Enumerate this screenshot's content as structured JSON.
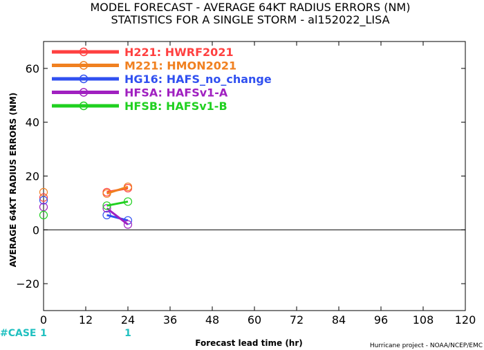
{
  "chart_data": {
    "type": "line",
    "title": "MODEL FORECAST - AVERAGE 64KT RADIUS ERRORS (NM)",
    "subtitle": "STATISTICS FOR A SINGLE STORM - al152022_LISA",
    "xlabel": "Forecast lead time (hr)",
    "ylabel": "AVERAGE 64KT RADIUS ERRORS (NM)",
    "xlim": [
      0,
      120
    ],
    "ylim": [
      -30,
      70
    ],
    "xticks": [
      0,
      12,
      24,
      36,
      48,
      60,
      72,
      84,
      96,
      108,
      120
    ],
    "yticks": [
      -20,
      0,
      20,
      40,
      60
    ],
    "grid": false,
    "legend_position": "top-left",
    "series": [
      {
        "name": "H221: HWRF2021",
        "color": "#ff4040",
        "points": [
          [
            0,
            12
          ],
          [
            18,
            14
          ],
          [
            24,
            15.5
          ]
        ]
      },
      {
        "name": "M221: HMON2021",
        "color": "#f08020",
        "points": [
          [
            0,
            14
          ],
          [
            18,
            13.5
          ],
          [
            24,
            16
          ]
        ]
      },
      {
        "name": "HG16: HAFS_no_change",
        "color": "#3050f0",
        "points": [
          [
            0,
            11
          ],
          [
            18,
            5.5
          ],
          [
            24,
            3.5
          ]
        ]
      },
      {
        "name": "HFSA: HAFSv1-A",
        "color": "#a020c0",
        "points": [
          [
            0,
            8.5
          ],
          [
            18,
            8
          ],
          [
            24,
            2
          ]
        ]
      },
      {
        "name": "HFSB: HAFSv1-B",
        "color": "#20d020",
        "points": [
          [
            0,
            5.5
          ],
          [
            18,
            9
          ],
          [
            24,
            10.5
          ]
        ]
      }
    ],
    "cases": {
      "label": "#CASE",
      "color": "#20c0c0",
      "items": [
        {
          "x": 0,
          "count": "1"
        },
        {
          "x": 24,
          "count": "1"
        }
      ]
    },
    "credit": "Hurricane project - NOAA/NCEP/EMC"
  }
}
